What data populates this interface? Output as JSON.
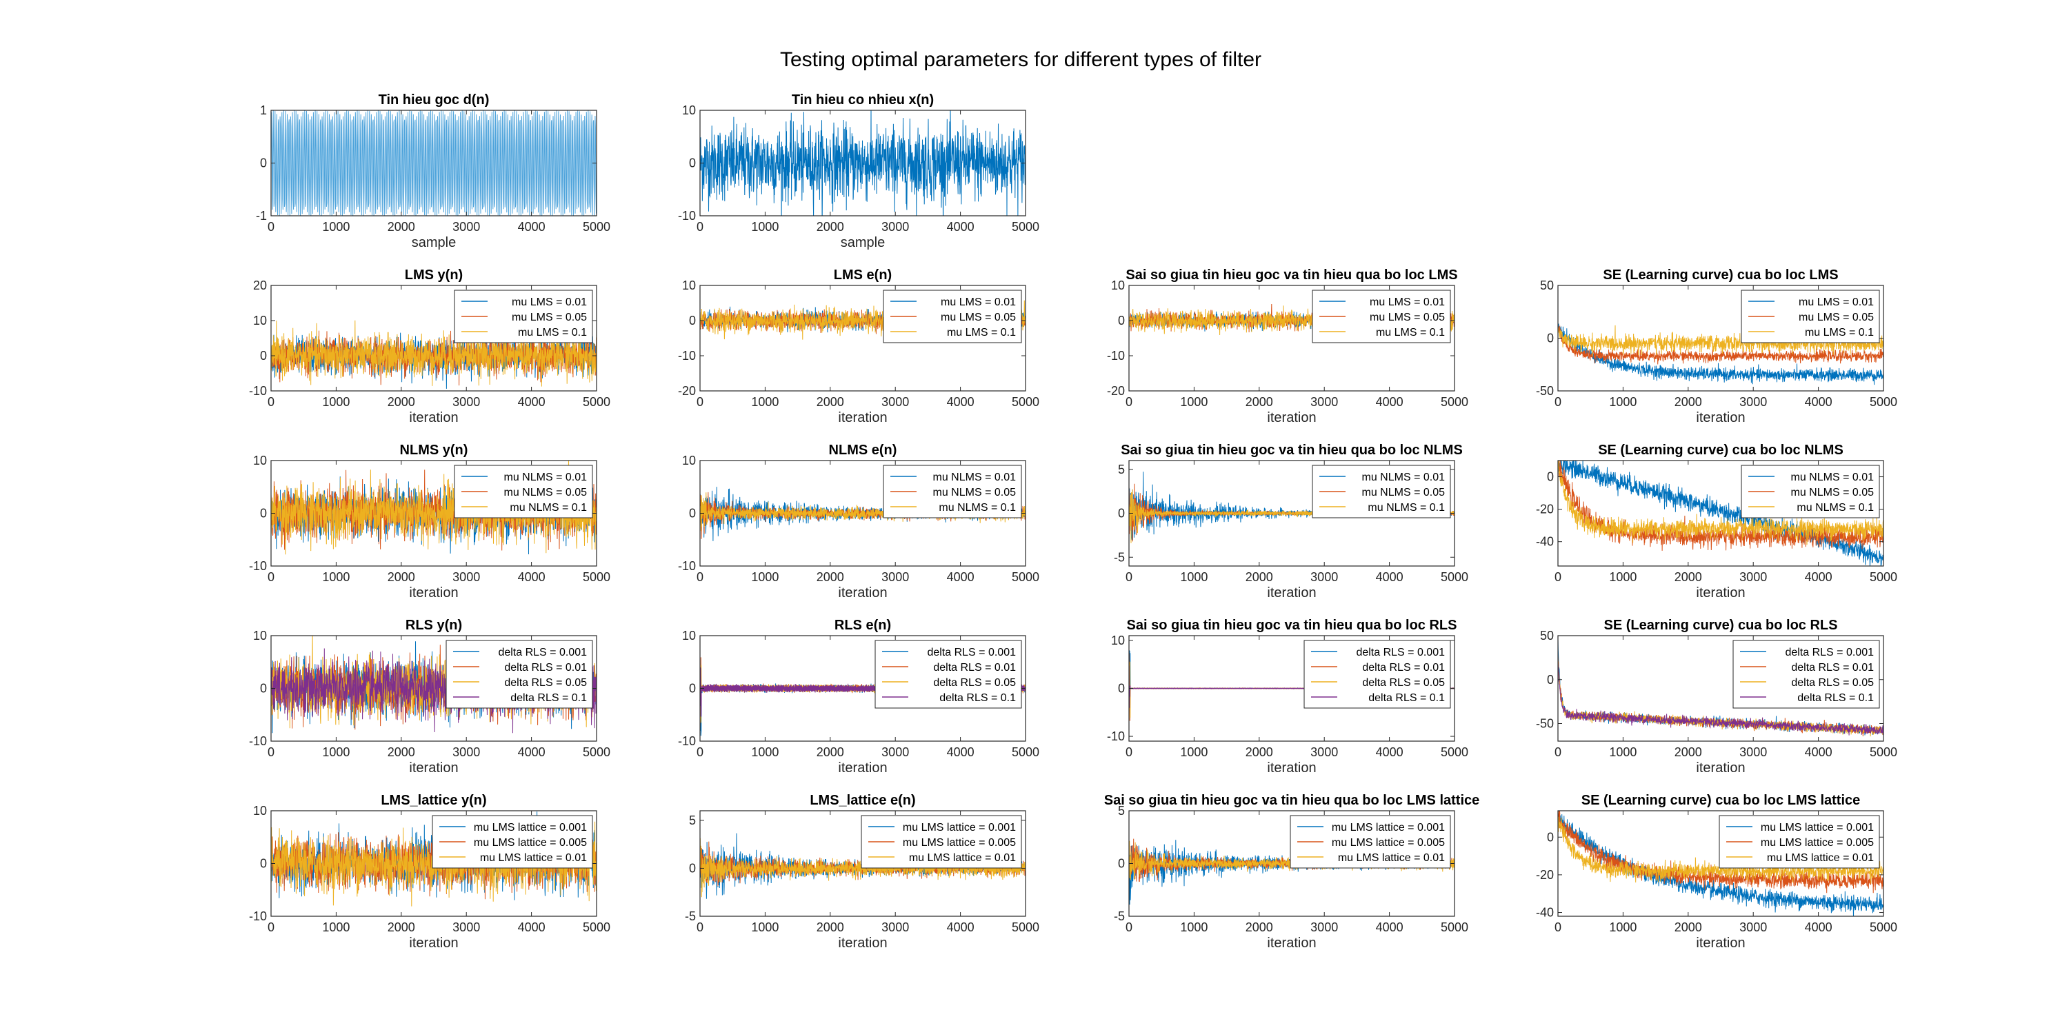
{
  "figure": {
    "title": "Testing optimal parameters for different types of filter"
  },
  "colors": {
    "c1": "#0072BD",
    "c2": "#D95319",
    "c3": "#EDB120",
    "c4": "#7E2F8E",
    "single": "#0072BD",
    "single_light": "#4DA3DB"
  },
  "chart_data": [
    {
      "id": "d",
      "type": "line",
      "title": "Tin hieu goc d(n)",
      "xlabel": "sample",
      "ylabel": "",
      "xlim": [
        0,
        5000
      ],
      "ylim": [
        -1,
        1
      ],
      "xticks": [
        0,
        1000,
        2000,
        3000,
        4000,
        5000
      ],
      "yticks": [
        -1,
        0,
        1
      ],
      "legend": [],
      "series": [
        {
          "name": "",
          "kind": "sine",
          "amp": 1
        }
      ]
    },
    {
      "id": "x",
      "type": "line",
      "title": "Tin hieu co nhieu x(n)",
      "xlabel": "sample",
      "ylabel": "",
      "xlim": [
        0,
        5000
      ],
      "ylim": [
        -10,
        10
      ],
      "xticks": [
        0,
        1000,
        2000,
        3000,
        4000,
        5000
      ],
      "yticks": [
        -10,
        0,
        10
      ],
      "legend": [],
      "series": [
        {
          "name": "",
          "kind": "noise",
          "amp": 3.5
        }
      ]
    },
    {
      "id": "lms_y",
      "type": "line",
      "title": "LMS y(n)",
      "xlabel": "iteration",
      "ylabel": "",
      "xlim": [
        0,
        5000
      ],
      "ylim": [
        -10,
        20
      ],
      "xticks": [
        0,
        1000,
        2000,
        3000,
        4000,
        5000
      ],
      "yticks": [
        -10,
        0,
        10,
        20
      ],
      "legend": [
        "mu LMS = 0.01",
        "mu LMS = 0.05",
        "mu LMS = 0.1"
      ],
      "series": [
        {
          "name": "mu LMS = 0.01",
          "kind": "noise",
          "amp": 2.5
        },
        {
          "name": "mu LMS = 0.05",
          "kind": "noise",
          "amp": 2.5
        },
        {
          "name": "mu LMS = 0.1",
          "kind": "noise",
          "amp": 2.8
        }
      ]
    },
    {
      "id": "lms_e",
      "type": "line",
      "title": "LMS e(n)",
      "xlabel": "iteration",
      "ylabel": "",
      "xlim": [
        0,
        5000
      ],
      "ylim": [
        -20,
        10
      ],
      "xticks": [
        0,
        1000,
        2000,
        3000,
        4000,
        5000
      ],
      "yticks": [
        -20,
        -10,
        0,
        10
      ],
      "legend": [
        "mu LMS = 0.01",
        "mu LMS = 0.05",
        "mu LMS = 0.1"
      ],
      "series": [
        {
          "name": "mu LMS = 0.01",
          "kind": "noise",
          "amp": 1.2
        },
        {
          "name": "mu LMS = 0.05",
          "kind": "noise",
          "amp": 1.3
        },
        {
          "name": "mu LMS = 0.1",
          "kind": "noise",
          "amp": 1.6
        }
      ]
    },
    {
      "id": "lms_err",
      "type": "line",
      "title": "Sai so giua tin hieu goc va tin hieu qua bo loc LMS",
      "xlabel": "iteration",
      "ylabel": "",
      "xlim": [
        0,
        5000
      ],
      "ylim": [
        -20,
        10
      ],
      "xticks": [
        0,
        1000,
        2000,
        3000,
        4000,
        5000
      ],
      "yticks": [
        -20,
        -10,
        0,
        10
      ],
      "legend": [
        "mu LMS = 0.01",
        "mu LMS = 0.05",
        "mu LMS = 0.1"
      ],
      "series": [
        {
          "name": "mu LMS = 0.01",
          "kind": "noise",
          "amp": 1.0
        },
        {
          "name": "mu LMS = 0.05",
          "kind": "noise",
          "amp": 1.1
        },
        {
          "name": "mu LMS = 0.1",
          "kind": "noise",
          "amp": 1.4
        }
      ]
    },
    {
      "id": "lms_se",
      "type": "line",
      "title": "SE (Learning curve) cua bo loc LMS",
      "xlabel": "iteration",
      "ylabel": "",
      "xlim": [
        0,
        5000
      ],
      "ylim": [
        -50,
        50
      ],
      "xticks": [
        0,
        1000,
        2000,
        3000,
        4000,
        5000
      ],
      "yticks": [
        -50,
        0,
        50
      ],
      "legend": [
        "mu LMS = 0.01",
        "mu LMS = 0.05",
        "mu LMS = 0.1"
      ],
      "series": [
        {
          "name": "mu LMS = 0.01",
          "kind": "decay",
          "start": 10,
          "end": -35,
          "tau": 600,
          "noise": 3
        },
        {
          "name": "mu LMS = 0.05",
          "kind": "decay",
          "start": 10,
          "end": -17,
          "tau": 150,
          "noise": 2.5
        },
        {
          "name": "mu LMS = 0.1",
          "kind": "decay",
          "start": 10,
          "end": -5,
          "tau": 80,
          "noise": 4
        }
      ]
    },
    {
      "id": "nlms_y",
      "type": "line",
      "title": "NLMS y(n)",
      "xlabel": "iteration",
      "ylabel": "",
      "xlim": [
        0,
        5000
      ],
      "ylim": [
        -10,
        10
      ],
      "xticks": [
        0,
        1000,
        2000,
        3000,
        4000,
        5000
      ],
      "yticks": [
        -10,
        0,
        10
      ],
      "legend": [
        "mu NLMS = 0.01",
        "mu NLMS = 0.05",
        "mu NLMS = 0.1"
      ],
      "series": [
        {
          "name": "mu NLMS = 0.01",
          "kind": "noise",
          "amp": 2.3
        },
        {
          "name": "mu NLMS = 0.05",
          "kind": "noise",
          "amp": 2.3
        },
        {
          "name": "mu NLMS = 0.1",
          "kind": "noise",
          "amp": 2.5
        }
      ]
    },
    {
      "id": "nlms_e",
      "type": "line",
      "title": "NLMS e(n)",
      "xlabel": "iteration",
      "ylabel": "",
      "xlim": [
        0,
        5000
      ],
      "ylim": [
        -10,
        10
      ],
      "xticks": [
        0,
        1000,
        2000,
        3000,
        4000,
        5000
      ],
      "yticks": [
        -10,
        0,
        10
      ],
      "legend": [
        "mu NLMS = 0.01",
        "mu NLMS = 0.05",
        "mu NLMS = 0.1"
      ],
      "series": [
        {
          "name": "mu NLMS = 0.01",
          "kind": "conv",
          "a0": 4,
          "a1": 0.7,
          "tau": 900
        },
        {
          "name": "mu NLMS = 0.05",
          "kind": "conv",
          "a0": 4,
          "a1": 0.7,
          "tau": 250
        },
        {
          "name": "mu NLMS = 0.1",
          "kind": "conv",
          "a0": 4,
          "a1": 0.8,
          "tau": 120
        }
      ]
    },
    {
      "id": "nlms_err",
      "type": "line",
      "title": "Sai so giua tin hieu goc va tin hieu qua bo loc NLMS",
      "xlabel": "iteration",
      "ylabel": "",
      "xlim": [
        0,
        5000
      ],
      "ylim": [
        -6,
        6
      ],
      "xticks": [
        0,
        1000,
        2000,
        3000,
        4000,
        5000
      ],
      "yticks": [
        -5,
        0,
        5
      ],
      "legend": [
        "mu NLMS = 0.01",
        "mu NLMS = 0.05",
        "mu NLMS = 0.1"
      ],
      "series": [
        {
          "name": "mu NLMS = 0.01",
          "kind": "conv",
          "a0": 3,
          "a1": 0.15,
          "tau": 900
        },
        {
          "name": "mu NLMS = 0.05",
          "kind": "conv",
          "a0": 3,
          "a1": 0.15,
          "tau": 250
        },
        {
          "name": "mu NLMS = 0.1",
          "kind": "conv",
          "a0": 3,
          "a1": 0.2,
          "tau": 120
        }
      ]
    },
    {
      "id": "nlms_se",
      "type": "line",
      "title": "SE (Learning curve) cua bo loc NLMS",
      "xlabel": "iteration",
      "ylabel": "",
      "xlim": [
        0,
        5000
      ],
      "ylim": [
        -55,
        10
      ],
      "xticks": [
        0,
        1000,
        2000,
        3000,
        4000,
        5000
      ],
      "yticks": [
        -40,
        -20,
        0
      ],
      "legend": [
        "mu NLMS = 0.01",
        "mu NLMS = 0.05",
        "mu NLMS = 0.1"
      ],
      "series": [
        {
          "name": "mu NLMS = 0.01",
          "kind": "linear",
          "start": 8,
          "end": -50,
          "noise": 3
        },
        {
          "name": "mu NLMS = 0.05",
          "kind": "decay",
          "start": 8,
          "end": -37,
          "tau": 350,
          "noise": 3
        },
        {
          "name": "mu NLMS = 0.1",
          "kind": "decay",
          "start": 8,
          "end": -32,
          "tau": 180,
          "noise": 3
        }
      ]
    },
    {
      "id": "rls_y",
      "type": "line",
      "title": "RLS y(n)",
      "xlabel": "iteration",
      "ylabel": "",
      "xlim": [
        0,
        5000
      ],
      "ylim": [
        -10,
        10
      ],
      "xticks": [
        0,
        1000,
        2000,
        3000,
        4000,
        5000
      ],
      "yticks": [
        -10,
        0,
        10
      ],
      "legend": [
        "delta RLS = 0.001",
        "delta RLS = 0.01",
        "delta RLS = 0.05",
        "delta RLS = 0.1"
      ],
      "series": [
        {
          "name": "delta RLS = 0.001",
          "kind": "noise",
          "amp": 2.5
        },
        {
          "name": "delta RLS = 0.01",
          "kind": "noise",
          "amp": 2.5
        },
        {
          "name": "delta RLS = 0.05",
          "kind": "noise",
          "amp": 2.5
        },
        {
          "name": "delta RLS = 0.1",
          "kind": "noise",
          "amp": 2.5
        }
      ]
    },
    {
      "id": "rls_e",
      "type": "line",
      "title": "RLS e(n)",
      "xlabel": "iteration",
      "ylabel": "",
      "xlim": [
        0,
        5000
      ],
      "ylim": [
        -10,
        10
      ],
      "xticks": [
        0,
        1000,
        2000,
        3000,
        4000,
        5000
      ],
      "yticks": [
        -10,
        0,
        10
      ],
      "legend": [
        "delta RLS = 0.001",
        "delta RLS = 0.01",
        "delta RLS = 0.05",
        "delta RLS = 0.1"
      ],
      "series": [
        {
          "name": "delta RLS = 0.001",
          "kind": "spike",
          "amp": 0.6,
          "spike": 9
        },
        {
          "name": "delta RLS = 0.01",
          "kind": "spike",
          "amp": 0.6,
          "spike": 8
        },
        {
          "name": "delta RLS = 0.05",
          "kind": "spike",
          "amp": 0.6,
          "spike": 7
        },
        {
          "name": "delta RLS = 0.1",
          "kind": "spike",
          "amp": 0.6,
          "spike": 6
        }
      ]
    },
    {
      "id": "rls_err",
      "type": "line",
      "title": "Sai so giua tin hieu goc va tin hieu qua bo loc RLS",
      "xlabel": "iteration",
      "ylabel": "",
      "xlim": [
        0,
        5000
      ],
      "ylim": [
        -11,
        11
      ],
      "xticks": [
        0,
        1000,
        2000,
        3000,
        4000,
        5000
      ],
      "yticks": [
        -10,
        0,
        10
      ],
      "legend": [
        "delta RLS = 0.001",
        "delta RLS = 0.01",
        "delta RLS = 0.05",
        "delta RLS = 0.1"
      ],
      "series": [
        {
          "name": "delta RLS = 0.001",
          "kind": "spike",
          "amp": 0.05,
          "spike": 9
        },
        {
          "name": "delta RLS = 0.01",
          "kind": "spike",
          "amp": 0.05,
          "spike": 8
        },
        {
          "name": "delta RLS = 0.05",
          "kind": "spike",
          "amp": 0.05,
          "spike": 7
        },
        {
          "name": "delta RLS = 0.1",
          "kind": "spike",
          "amp": 0.05,
          "spike": 6
        }
      ]
    },
    {
      "id": "rls_se",
      "type": "line",
      "title": "SE (Learning curve) cua bo loc RLS",
      "xlabel": "iteration",
      "ylabel": "",
      "xlim": [
        0,
        5000
      ],
      "ylim": [
        -70,
        50
      ],
      "xticks": [
        0,
        1000,
        2000,
        3000,
        4000,
        5000
      ],
      "yticks": [
        -50,
        0,
        50
      ],
      "legend": [
        "delta RLS = 0.001",
        "delta RLS = 0.01",
        "delta RLS = 0.05",
        "delta RLS = 0.1"
      ],
      "series": [
        {
          "name": "delta RLS = 0.001",
          "kind": "rlsdecay",
          "start": 40,
          "end": -60,
          "noise": 2.5
        },
        {
          "name": "delta RLS = 0.01",
          "kind": "rlsdecay",
          "start": 30,
          "end": -60,
          "noise": 2.5
        },
        {
          "name": "delta RLS = 0.05",
          "kind": "rlsdecay",
          "start": 25,
          "end": -60,
          "noise": 2.5
        },
        {
          "name": "delta RLS = 0.1",
          "kind": "rlsdecay",
          "start": 20,
          "end": -60,
          "noise": 2.5
        }
      ]
    },
    {
      "id": "lat_y",
      "type": "line",
      "title": "LMS_lattice y(n)",
      "xlabel": "iteration",
      "ylabel": "",
      "xlim": [
        0,
        5000
      ],
      "ylim": [
        -10,
        10
      ],
      "xticks": [
        0,
        1000,
        2000,
        3000,
        4000,
        5000
      ],
      "yticks": [
        -10,
        0,
        10
      ],
      "legend": [
        "mu LMS lattice = 0.001",
        "mu LMS lattice = 0.005",
        "mu LMS lattice = 0.01"
      ],
      "series": [
        {
          "name": "mu LMS lattice = 0.001",
          "kind": "noise",
          "amp": 2.3
        },
        {
          "name": "mu LMS lattice = 0.005",
          "kind": "noise",
          "amp": 2.3
        },
        {
          "name": "mu LMS lattice = 0.01",
          "kind": "noise",
          "amp": 2.4
        }
      ]
    },
    {
      "id": "lat_e",
      "type": "line",
      "title": "LMS_lattice e(n)",
      "xlabel": "iteration",
      "ylabel": "",
      "xlim": [
        0,
        5000
      ],
      "ylim": [
        -5,
        6
      ],
      "xticks": [
        0,
        1000,
        2000,
        3000,
        4000,
        5000
      ],
      "yticks": [
        -5,
        0,
        5
      ],
      "legend": [
        "mu LMS lattice = 0.001",
        "mu LMS lattice = 0.005",
        "mu LMS lattice = 0.01"
      ],
      "series": [
        {
          "name": "mu LMS lattice = 0.001",
          "kind": "conv",
          "a0": 2.8,
          "a1": 0.4,
          "tau": 900
        },
        {
          "name": "mu LMS lattice = 0.005",
          "kind": "conv",
          "a0": 2.4,
          "a1": 0.5,
          "tau": 400
        },
        {
          "name": "mu LMS lattice = 0.01",
          "kind": "conv",
          "a0": 2.2,
          "a1": 0.6,
          "tau": 250
        }
      ]
    },
    {
      "id": "lat_err",
      "type": "line",
      "title": "Sai so giua tin hieu goc va tin hieu qua bo loc LMS lattice",
      "xlabel": "iteration",
      "ylabel": "",
      "xlim": [
        0,
        5000
      ],
      "ylim": [
        -5,
        5
      ],
      "xticks": [
        0,
        1000,
        2000,
        3000,
        4000,
        5000
      ],
      "yticks": [
        -5,
        0,
        5
      ],
      "legend": [
        "mu LMS lattice = 0.001",
        "mu LMS lattice = 0.005",
        "mu LMS lattice = 0.01"
      ],
      "series": [
        {
          "name": "mu LMS lattice = 0.001",
          "kind": "conv",
          "a0": 2.4,
          "a1": 0.3,
          "tau": 900
        },
        {
          "name": "mu LMS lattice = 0.005",
          "kind": "conv",
          "a0": 2.0,
          "a1": 0.3,
          "tau": 400
        },
        {
          "name": "mu LMS lattice = 0.01",
          "kind": "conv",
          "a0": 1.8,
          "a1": 0.35,
          "tau": 250
        }
      ]
    },
    {
      "id": "lat_se",
      "type": "line",
      "title": "SE (Learning curve) cua bo loc LMS lattice",
      "xlabel": "iteration",
      "ylabel": "",
      "xlim": [
        0,
        5000
      ],
      "ylim": [
        -42,
        14
      ],
      "xticks": [
        0,
        1000,
        2000,
        3000,
        4000,
        5000
      ],
      "yticks": [
        -40,
        -20,
        0
      ],
      "legend": [
        "mu LMS lattice = 0.001",
        "mu LMS lattice = 0.005",
        "mu LMS lattice = 0.01"
      ],
      "series": [
        {
          "name": "mu LMS lattice = 0.001",
          "kind": "decay",
          "start": 10,
          "end": -37,
          "tau": 1400,
          "noise": 2.2
        },
        {
          "name": "mu LMS lattice = 0.005",
          "kind": "decay",
          "start": 10,
          "end": -23,
          "tau": 700,
          "noise": 2.2
        },
        {
          "name": "mu LMS lattice = 0.01",
          "kind": "decay",
          "start": 10,
          "end": -18,
          "tau": 250,
          "noise": 2.2
        }
      ]
    }
  ]
}
